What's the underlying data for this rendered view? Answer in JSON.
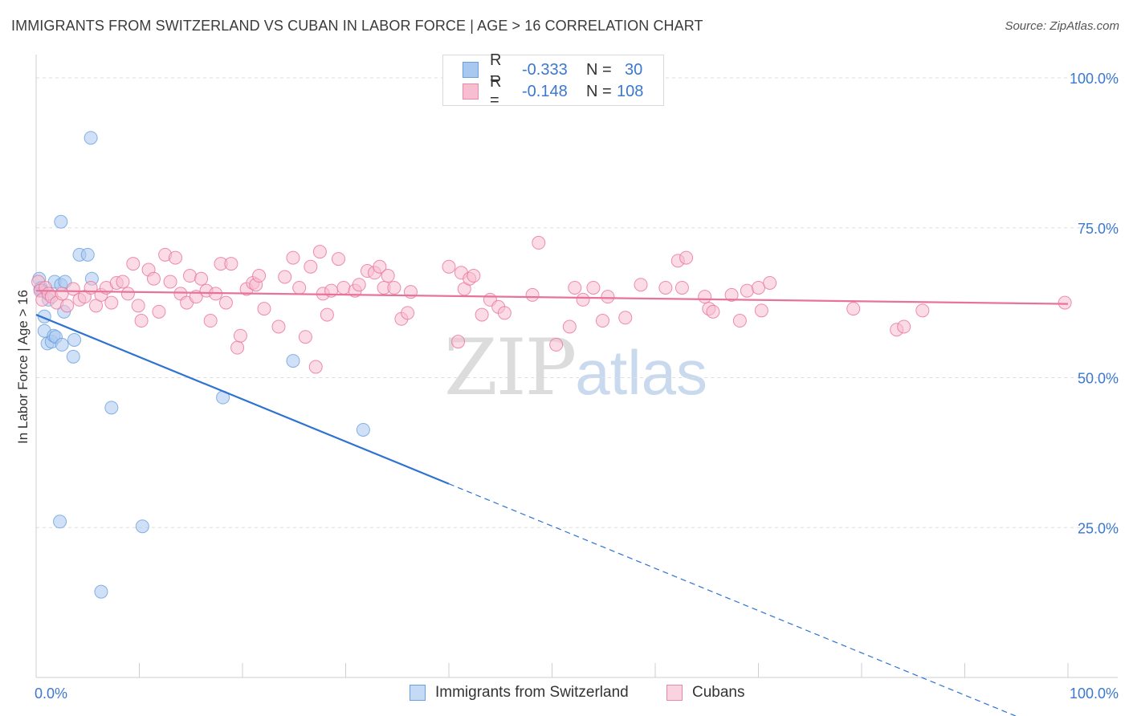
{
  "title": "IMMIGRANTS FROM SWITZERLAND VS CUBAN IN LABOR FORCE | AGE > 16 CORRELATION CHART",
  "source": "Source: ZipAtlas.com",
  "watermark": {
    "zip": "ZIP",
    "atlas": "atlas"
  },
  "legend": {
    "rows": [
      {
        "r_label": "R =",
        "r_value": "-0.333",
        "n_label": "N =",
        "n_value": "30",
        "color": "#a9c8f0",
        "border": "#6a9fde"
      },
      {
        "r_label": "R =",
        "r_value": "-0.148",
        "n_label": "N =",
        "n_value": "108",
        "color": "#f7bdd0",
        "border": "#e88aa8"
      }
    ]
  },
  "bottom_legend": [
    {
      "label": "Immigrants from Switzerland",
      "color": "#a9c8f0",
      "border": "#6a9fde"
    },
    {
      "label": "Cubans",
      "color": "#f7bdd0",
      "border": "#e88aa8"
    }
  ],
  "chart_data": {
    "type": "scatter",
    "title": "IMMIGRANTS FROM SWITZERLAND VS CUBAN IN LABOR FORCE | AGE > 16 CORRELATION CHART",
    "xlabel": "",
    "ylabel": "In Labor Force | Age > 16",
    "xlim": [
      0,
      100
    ],
    "ylim": [
      0,
      100
    ],
    "x_tick_labels": [
      "0.0%",
      "100.0%"
    ],
    "y_ticks": [
      25,
      50,
      75,
      100
    ],
    "y_tick_labels": [
      "25.0%",
      "50.0%",
      "75.0%",
      "100.0%"
    ],
    "grid": true,
    "series": [
      {
        "name": "Immigrants from Switzerland",
        "color": "#6a9fde",
        "fill": "#a9c8f0",
        "trend": {
          "x0": 0,
          "y0": 60.5,
          "x1": 40,
          "y1": 32.3,
          "dash_to_x": 100
        },
        "points": [
          [
            0.3,
            66.5
          ],
          [
            0.5,
            65.0
          ],
          [
            0.6,
            64.5
          ],
          [
            0.8,
            60.2
          ],
          [
            0.8,
            57.8
          ],
          [
            1.2,
            63.0
          ],
          [
            1.1,
            55.7
          ],
          [
            1.5,
            56.0
          ],
          [
            1.7,
            57.0
          ],
          [
            1.8,
            66.0
          ],
          [
            1.9,
            56.8
          ],
          [
            2.3,
            26.0
          ],
          [
            2.4,
            76.0
          ],
          [
            2.4,
            65.5
          ],
          [
            2.5,
            55.5
          ],
          [
            2.7,
            61.0
          ],
          [
            2.8,
            66.0
          ],
          [
            3.6,
            53.5
          ],
          [
            3.7,
            56.3
          ],
          [
            4.2,
            70.5
          ],
          [
            5.0,
            70.5
          ],
          [
            5.3,
            90.0
          ],
          [
            5.4,
            66.5
          ],
          [
            6.3,
            14.3
          ],
          [
            7.3,
            45.0
          ],
          [
            10.3,
            25.2
          ],
          [
            18.1,
            46.7
          ],
          [
            24.9,
            52.8
          ],
          [
            31.7,
            41.3
          ],
          [
            0.4,
            64.8
          ]
        ]
      },
      {
        "name": "Cubans",
        "color": "#e8739a",
        "fill": "#f7bdd0",
        "trend": {
          "x0": 0,
          "y0": 64.5,
          "x1": 100,
          "y1": 62.3
        },
        "points": [
          [
            0.2,
            66.0
          ],
          [
            0.4,
            64.5
          ],
          [
            0.6,
            63.0
          ],
          [
            0.9,
            65.0
          ],
          [
            1.2,
            64.0
          ],
          [
            1.5,
            63.5
          ],
          [
            2.0,
            62.5
          ],
          [
            2.5,
            64.0
          ],
          [
            3.0,
            62.0
          ],
          [
            3.6,
            64.8
          ],
          [
            4.2,
            63.0
          ],
          [
            4.7,
            63.5
          ],
          [
            5.3,
            65.0
          ],
          [
            5.8,
            62.0
          ],
          [
            6.3,
            63.8
          ],
          [
            6.8,
            65.0
          ],
          [
            7.3,
            62.5
          ],
          [
            7.8,
            65.8
          ],
          [
            8.4,
            66.0
          ],
          [
            8.9,
            64.0
          ],
          [
            9.4,
            69.0
          ],
          [
            9.9,
            62.0
          ],
          [
            10.2,
            59.5
          ],
          [
            10.9,
            68.0
          ],
          [
            11.4,
            66.5
          ],
          [
            11.9,
            61.0
          ],
          [
            12.5,
            70.5
          ],
          [
            13.0,
            66.0
          ],
          [
            13.5,
            70.0
          ],
          [
            14.0,
            64.0
          ],
          [
            14.6,
            62.5
          ],
          [
            14.9,
            67.0
          ],
          [
            15.5,
            63.5
          ],
          [
            16.0,
            66.5
          ],
          [
            16.5,
            64.5
          ],
          [
            16.9,
            59.5
          ],
          [
            17.4,
            64.0
          ],
          [
            17.9,
            69.0
          ],
          [
            18.4,
            62.5
          ],
          [
            18.9,
            69.0
          ],
          [
            19.5,
            55.0
          ],
          [
            19.8,
            57.0
          ],
          [
            20.4,
            64.8
          ],
          [
            21.0,
            65.8
          ],
          [
            21.3,
            65.5
          ],
          [
            21.6,
            67.0
          ],
          [
            22.1,
            61.5
          ],
          [
            23.5,
            58.5
          ],
          [
            24.1,
            66.8
          ],
          [
            24.9,
            70.0
          ],
          [
            25.5,
            65.0
          ],
          [
            26.1,
            56.8
          ],
          [
            26.6,
            68.5
          ],
          [
            27.1,
            51.8
          ],
          [
            27.5,
            71.0
          ],
          [
            27.8,
            64.0
          ],
          [
            28.2,
            60.5
          ],
          [
            28.6,
            64.5
          ],
          [
            29.3,
            69.8
          ],
          [
            29.8,
            65.0
          ],
          [
            30.9,
            64.5
          ],
          [
            31.3,
            65.5
          ],
          [
            32.1,
            67.8
          ],
          [
            32.8,
            67.5
          ],
          [
            33.3,
            68.5
          ],
          [
            33.7,
            65.0
          ],
          [
            34.1,
            67.0
          ],
          [
            34.7,
            65.0
          ],
          [
            35.4,
            59.8
          ],
          [
            36.0,
            60.8
          ],
          [
            36.3,
            64.3
          ],
          [
            40.0,
            68.5
          ],
          [
            40.9,
            56.0
          ],
          [
            41.2,
            67.5
          ],
          [
            41.5,
            64.8
          ],
          [
            42.0,
            66.5
          ],
          [
            42.4,
            67.0
          ],
          [
            43.2,
            60.5
          ],
          [
            44.0,
            63.0
          ],
          [
            44.8,
            61.8
          ],
          [
            45.4,
            60.8
          ],
          [
            48.1,
            63.8
          ],
          [
            48.7,
            72.5
          ],
          [
            50.4,
            55.5
          ],
          [
            51.7,
            58.5
          ],
          [
            52.2,
            65.0
          ],
          [
            53.0,
            63.0
          ],
          [
            54.0,
            65.0
          ],
          [
            54.9,
            59.5
          ],
          [
            55.4,
            63.5
          ],
          [
            57.1,
            60.0
          ],
          [
            58.6,
            65.5
          ],
          [
            61.0,
            65.0
          ],
          [
            62.2,
            69.5
          ],
          [
            62.6,
            65.0
          ],
          [
            63.0,
            70.0
          ],
          [
            64.8,
            63.5
          ],
          [
            65.2,
            61.5
          ],
          [
            65.6,
            61.0
          ],
          [
            67.4,
            63.8
          ],
          [
            68.2,
            59.5
          ],
          [
            68.9,
            64.5
          ],
          [
            70.0,
            65.0
          ],
          [
            70.3,
            61.2
          ],
          [
            71.1,
            65.8
          ],
          [
            79.2,
            61.5
          ],
          [
            83.4,
            58.0
          ],
          [
            84.1,
            58.5
          ],
          [
            85.9,
            61.2
          ],
          [
            99.7,
            62.5
          ]
        ]
      }
    ]
  }
}
